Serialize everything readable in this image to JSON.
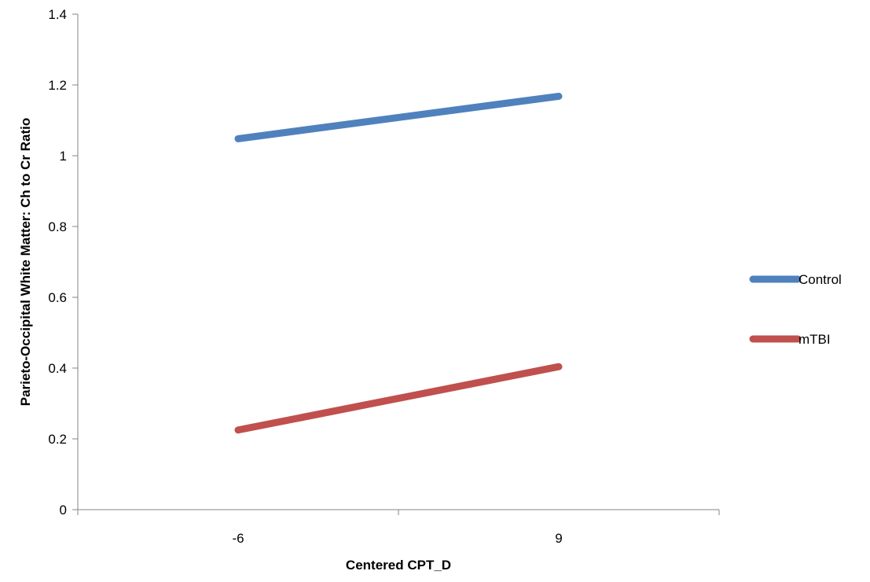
{
  "chart_data": {
    "type": "line",
    "title": "",
    "xlabel": "Centered CPT_D",
    "ylabel": "Parieto-Occipital White Matter: Ch to Cr Ratio",
    "categories": [
      "-6",
      "9"
    ],
    "ylim": [
      0,
      1.4
    ],
    "yticks": [
      "0",
      "0.2",
      "0.4",
      "0.6",
      "0.8",
      "1",
      "1.2",
      "1.4"
    ],
    "grid": false,
    "legend_position": "right",
    "series": [
      {
        "name": "Control",
        "values": [
          1.048,
          1.168
        ],
        "color": "#4F81BD"
      },
      {
        "name": "mTBI",
        "values": [
          0.225,
          0.404
        ],
        "color": "#C0504D"
      }
    ]
  }
}
